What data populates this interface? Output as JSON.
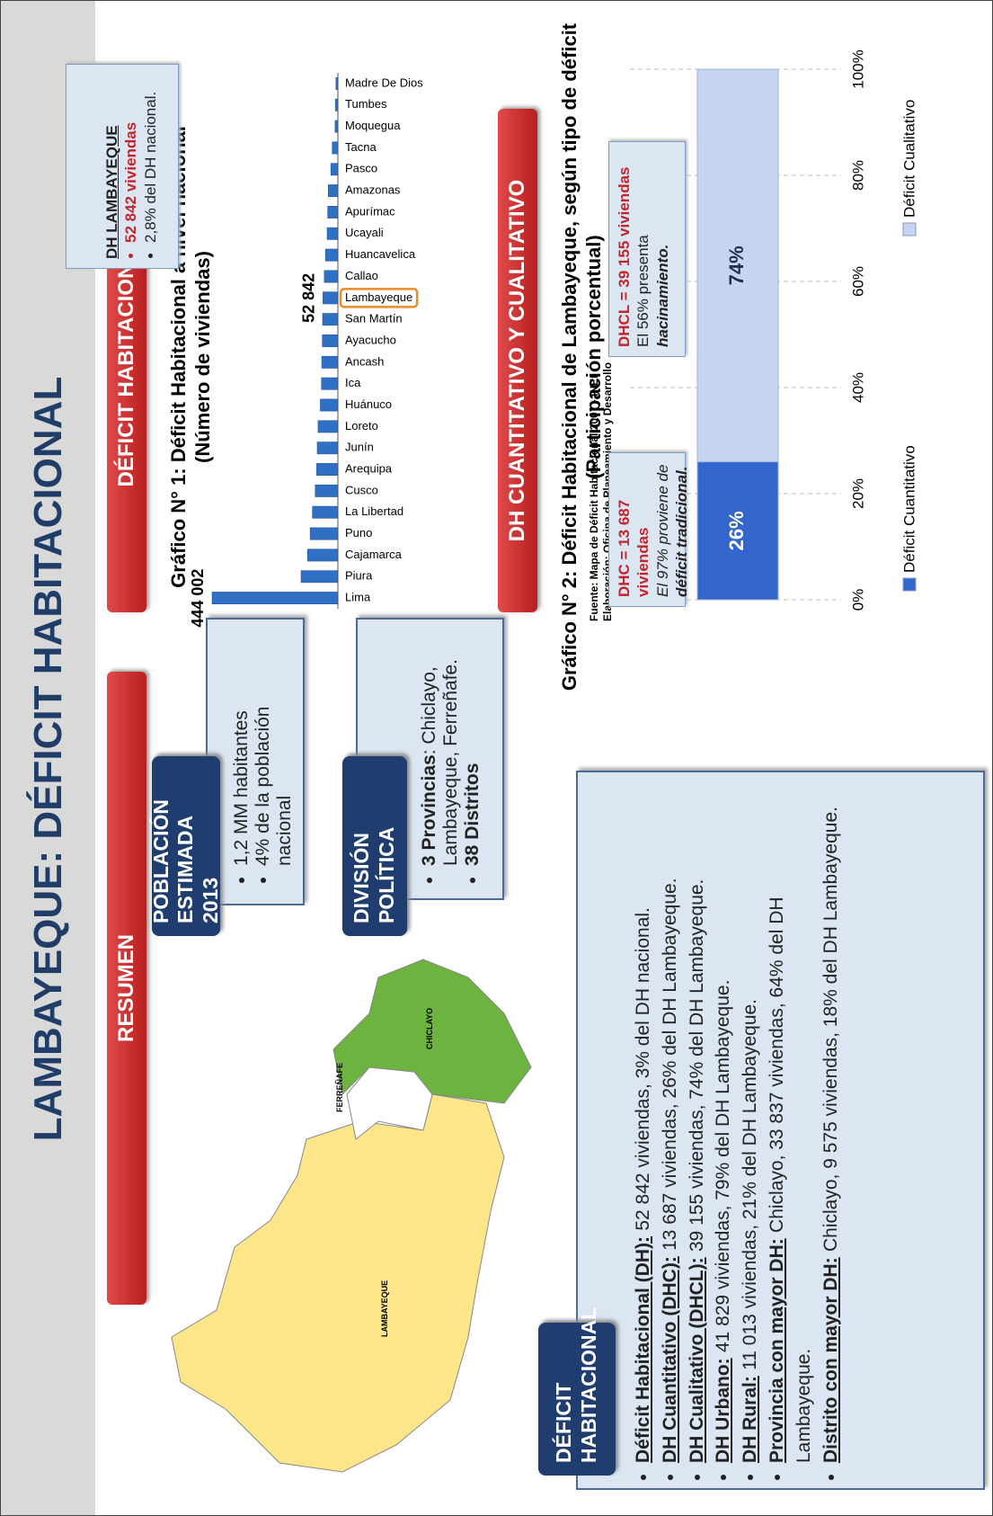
{
  "header": {
    "title": "LAMBAYEQUE: DÉFICIT HABITACIONAL"
  },
  "sections": {
    "resumen": "RESUMEN",
    "deficit": "DÉFICIT HABITACIONAL",
    "dh_tipos": "DH CUANTITATIVO Y CUALITATIVO"
  },
  "map": {
    "labels": [
      "LAMBAYEQUE",
      "FERREÑAFE",
      "CHICLAYO"
    ]
  },
  "poblacion": {
    "title": "POBLACIÓN ESTIMADA 2013",
    "items": [
      "1,2 MM habitantes",
      "4% de la población nacional"
    ]
  },
  "division": {
    "title": "DIVISIÓN POLÍTICA",
    "items": [
      {
        "bold": "3 Provincias",
        "text": ":  Chiclayo, Lambayeque, Ferreñafe."
      },
      {
        "bold": "38 Distritos"
      }
    ]
  },
  "summary": {
    "title": "DÉFICIT HABITACIONAL",
    "bullets": [
      {
        "lead": "Déficit Habitacional  (DH):",
        "text": "52 842 viviendas, 3% del DH nacional."
      },
      {
        "lead": "DH Cuantitativo (DHC):",
        "text": "13 687 viviendas, 26%  del DH Lambayeque."
      },
      {
        "lead": "DH Cualitativo (DHCL):",
        "text": "39 155 viviendas, 74%  del DH Lambayeque."
      },
      {
        "lead": "DH Urbano:",
        "text": "41 829 viviendas, 79%  del DH Lambayeque."
      },
      {
        "lead": "DH Rural:",
        "text": "11 013 viviendas, 21%  del DH Lambayeque."
      },
      {
        "lead": "Provincia con mayor DH:",
        "text": "Chiclayo, 33 837 viviendas, 64% del DH Lambayeque."
      },
      {
        "lead": "Distrito con mayor DH:",
        "text": "Chiclayo, 9 575 viviendas, 18%  del DH Lambayeque."
      }
    ]
  },
  "chart_data": [
    {
      "type": "bar",
      "title": "Gráfico N° 1: Déficit Habitacional a nivel nacional",
      "subtitle": "(Número de viviendas)",
      "categories": [
        "Lima",
        "Piura",
        "Cajamarca",
        "Puno",
        "La Libertad",
        "Cusco",
        "Arequipa",
        "Junín",
        "Loreto",
        "Huánuco",
        "Ica",
        "Ancash",
        "Ayacucho",
        "San Martín",
        "Lambayeque",
        "Callao",
        "Huancavelica",
        "Ucayali",
        "Apurímac",
        "Amazonas",
        "Pasco",
        "Tacna",
        "Moquegua",
        "Tumbes",
        "Madre De Dios"
      ],
      "values": [
        444002,
        130000,
        107000,
        98000,
        90000,
        80000,
        75000,
        73000,
        70000,
        62000,
        58000,
        57000,
        55000,
        54000,
        52842,
        48000,
        44000,
        38000,
        36000,
        34000,
        25000,
        20000,
        10000,
        9000,
        7000
      ],
      "value_labels": [
        "444 002",
        null,
        null,
        null,
        null,
        null,
        null,
        null,
        null,
        null,
        null,
        null,
        null,
        null,
        "52 842",
        null,
        null,
        null,
        null,
        null,
        null,
        null,
        null,
        null,
        null
      ],
      "color": "#2f6fc4",
      "highlight_index": 14,
      "highlight_color": "#f08a24",
      "annotation": {
        "title": "DH LAMBAYEQUE",
        "highlight": "52 842 viviendas",
        "text": "2,8% del DH nacional."
      },
      "source": [
        "Fuente: Mapa de Déficit Habitacional 2007 - INEI",
        "Elaboración: Oficina de Planeamiento y Desarrollo"
      ]
    },
    {
      "type": "stacked_bar",
      "title": "Gráfico N° 2: Déficit Habitacional de Lambayeque, según tipo de déficit",
      "subtitle": "(Participación porcentual)",
      "categories": [
        null
      ],
      "series": [
        {
          "name": "Déficit Cuantitativo",
          "color": "#3366cc",
          "values": [
            26
          ],
          "value_labels": [
            "26%"
          ]
        },
        {
          "name": "Déficit Cualitativo",
          "color": "#c6d4ef",
          "values": [
            74
          ],
          "value_labels": [
            "74%"
          ]
        }
      ],
      "xlim": [
        0,
        100
      ],
      "xticks": [
        {
          "value": 0,
          "label": "0%"
        },
        {
          "value": 20,
          "label": "20%"
        },
        {
          "value": 40,
          "label": "40%"
        },
        {
          "value": 60,
          "label": "60%"
        },
        {
          "value": 80,
          "label": "80%"
        },
        {
          "value": 100,
          "label": "100%"
        }
      ],
      "grid": true,
      "legend": "bottom",
      "annotations": [
        {
          "title": "DHC = 13 687 viviendas",
          "text": "El 97% proviene de",
          "emphasis": "déficit tradicional."
        },
        {
          "title": "DHCL = 39 155 viviendas",
          "text": "El 56% presenta",
          "emphasis": "hacinamiento."
        }
      ]
    }
  ]
}
